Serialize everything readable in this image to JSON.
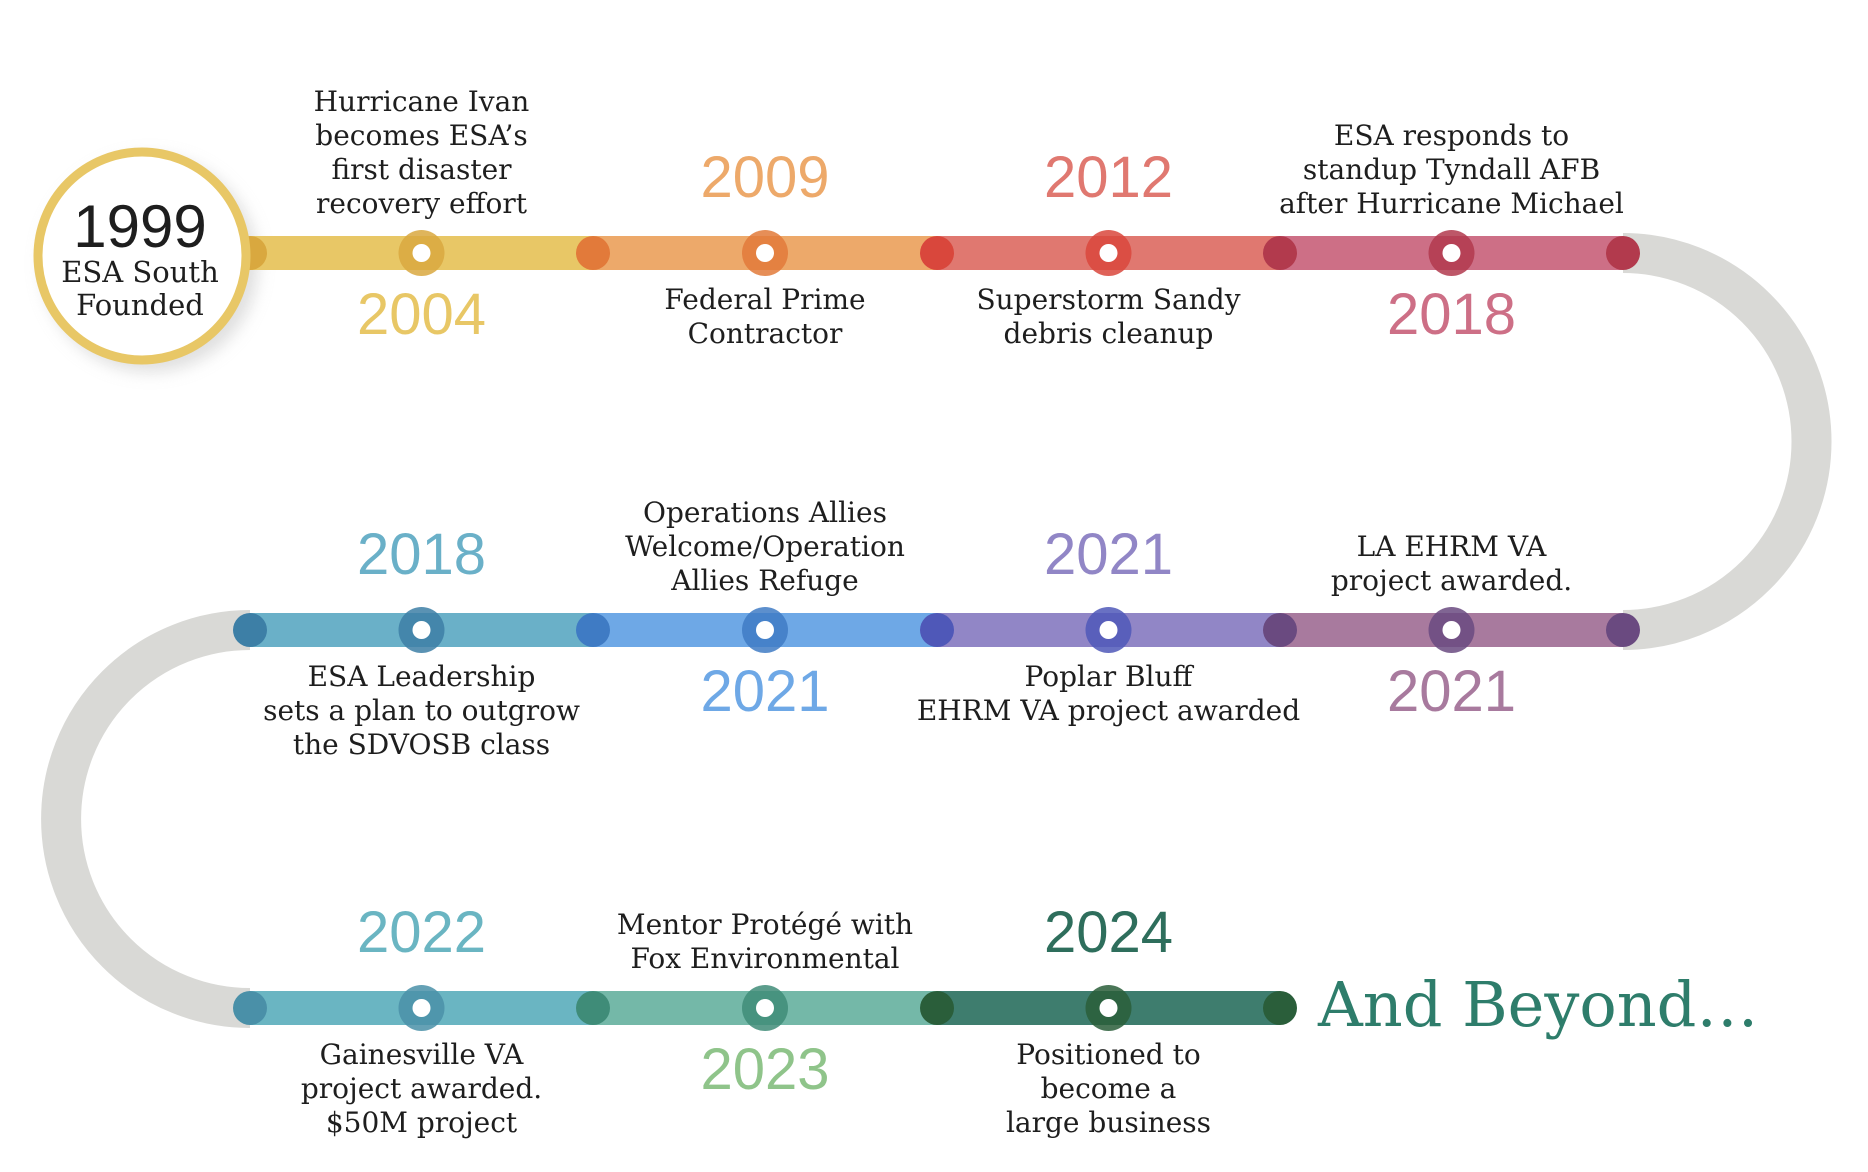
{
  "start": {
    "year": "1999",
    "text": "ESA South\nFounded",
    "color": "#e8c766"
  },
  "rows": [
    {
      "milestones": [
        {
          "year": "2004",
          "year_pos": "below",
          "text": "Hurricane Ivan\nbecomes ESA’s\nfirst disaster\nrecovery effort",
          "color": "#e8c766",
          "dot": "#d9a83f"
        },
        {
          "year": "2009",
          "year_pos": "above",
          "text": "Federal Prime\nContractor",
          "color": "#eda96a",
          "dot": "#e27a3a"
        },
        {
          "year": "2012",
          "year_pos": "above",
          "text": "Superstorm Sandy\ndebris cleanup",
          "color": "#e07870",
          "dot": "#d9473c"
        },
        {
          "year": "2018",
          "year_pos": "below",
          "text": "ESA responds to\nstandup Tyndall AFB\nafter Hurricane Michael",
          "color": "#cd6f86",
          "dot": "#b23a4d"
        }
      ]
    },
    {
      "milestones": [
        {
          "year": "2018",
          "year_pos": "above",
          "text": "ESA Leadership\nsets a plan to outgrow\nthe SDVOSB class",
          "color": "#6ab0c8",
          "dot": "#3d7fa6"
        },
        {
          "year": "2021",
          "year_pos": "below",
          "text": "Operations Allies\nWelcome/Operation\nAllies Refuge",
          "color": "#6ea8e6",
          "dot": "#3f7bc4"
        },
        {
          "year": "2021",
          "year_pos": "above",
          "text": "Poplar Bluff\nEHRM VA project awarded",
          "color": "#9186c6",
          "dot": "#4f58b8"
        },
        {
          "year": "2021",
          "year_pos": "below",
          "text": "LA EHRM VA\nproject awarded.",
          "color": "#a87a9e",
          "dot": "#6a4a80"
        }
      ]
    },
    {
      "milestones": [
        {
          "year": "2022",
          "year_pos": "above",
          "text": "Gainesville VA\nproject awarded.\n$50M project",
          "color": "#6ab5c2",
          "dot": "#4a90a8"
        },
        {
          "year": "2023",
          "year_pos": "below",
          "text": "Mentor Protégé with\nFox Environmental",
          "color": "#74b8a8",
          "dot": "#3f8c78"
        },
        {
          "year": "2024",
          "year_pos": "above",
          "text": "Positioned to\nbecome a\nlarge business",
          "color": "#3e7d6e",
          "dot": "#2a5e3a"
        }
      ]
    }
  ],
  "year_colors": [
    "#e8c766",
    "#eda96a",
    "#e07870",
    "#cd6f86",
    "#6ab0c8",
    "#6ea8e6",
    "#9186c6",
    "#a87a9e",
    "#6ab5c2",
    "#8fc48a",
    "#2e6e5c"
  ],
  "connector_color": "#d9d9d6",
  "end_text": "And Beyond…",
  "end_color": "#2e7d6b"
}
